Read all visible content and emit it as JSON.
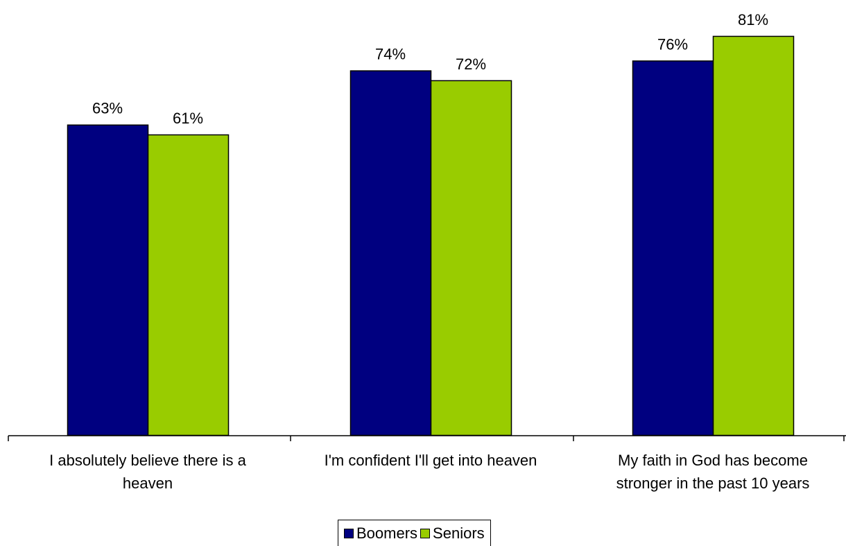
{
  "chart_data": {
    "type": "bar",
    "title": "",
    "xlabel": "",
    "ylabel": "",
    "ylim": [
      0,
      100
    ],
    "grid": false,
    "legend_position": "bottom",
    "value_suffix": "%",
    "categories": [
      [
        "I absolutely believe there is a",
        "heaven"
      ],
      [
        "I'm confident I'll get into heaven"
      ],
      [
        "My faith in God has become",
        "stronger in the past 10 years"
      ]
    ],
    "series": [
      {
        "name": "Boomers",
        "color": "#000080",
        "values": [
          63,
          74,
          76
        ]
      },
      {
        "name": "Seniors",
        "color": "#99CC00",
        "values": [
          61,
          72,
          81
        ]
      }
    ]
  }
}
